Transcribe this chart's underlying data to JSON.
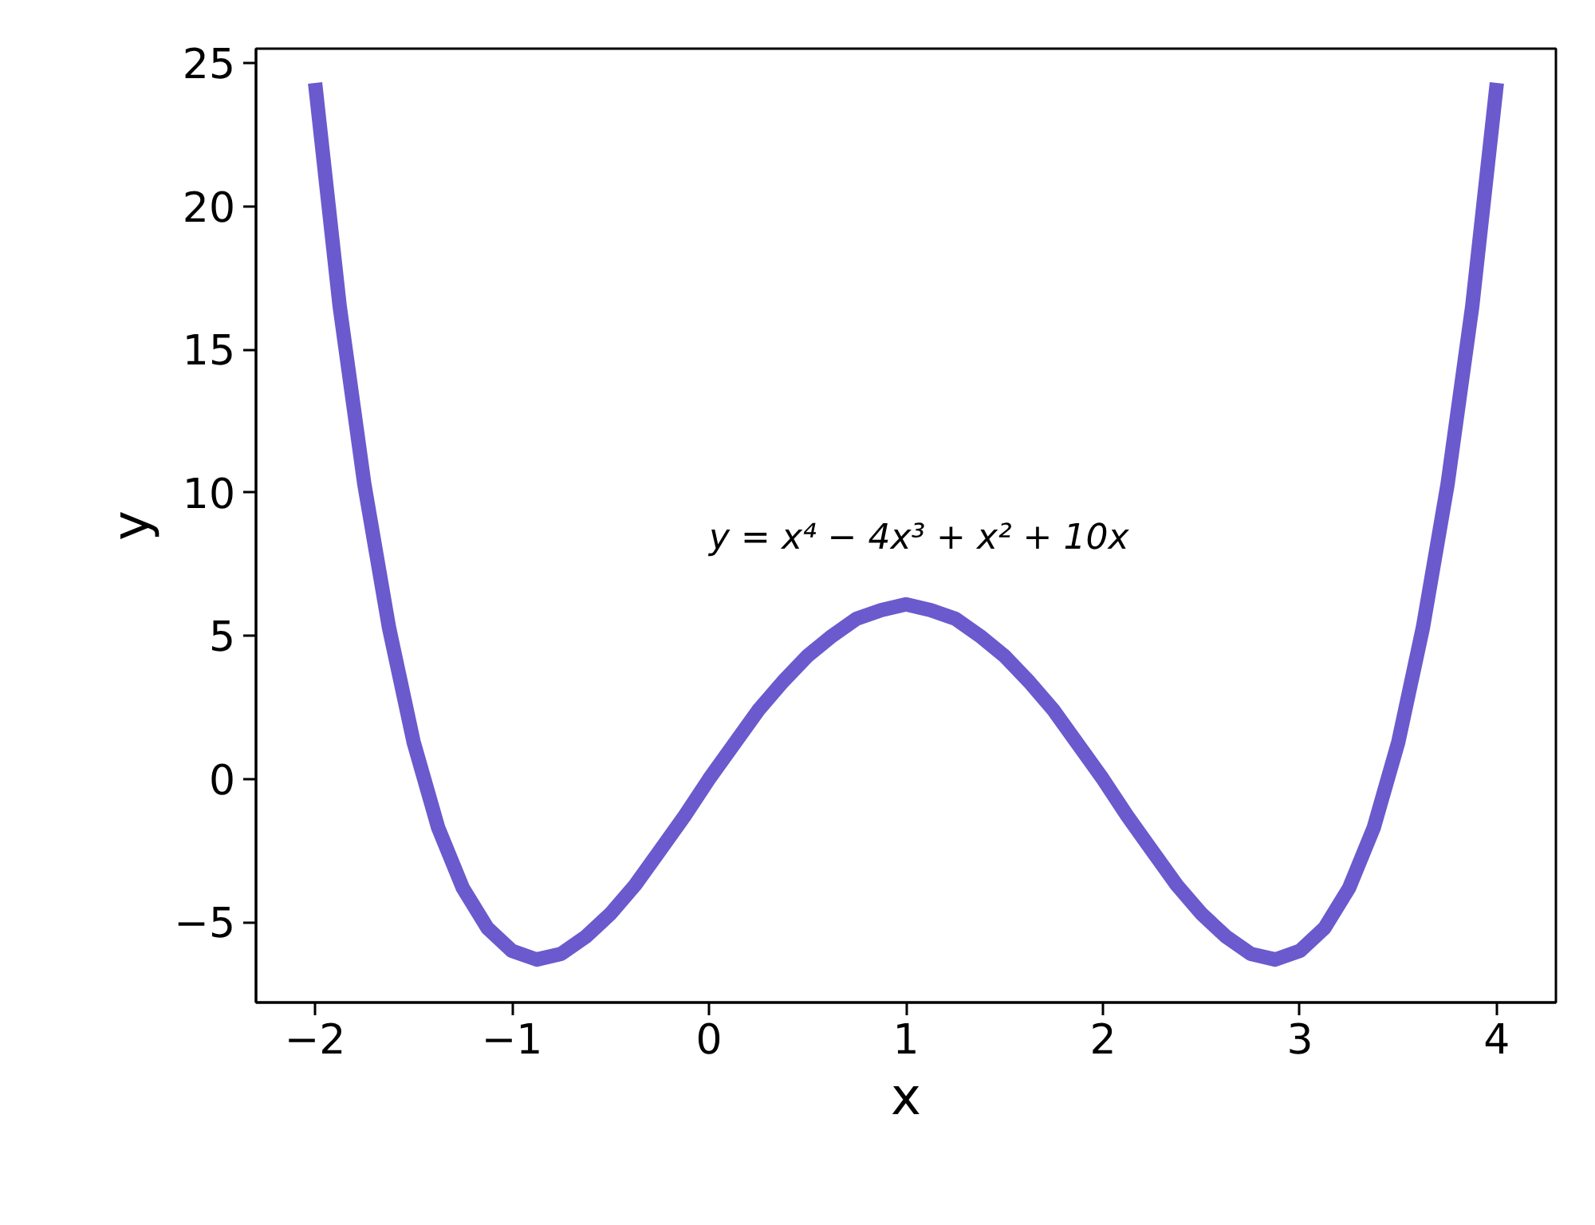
{
  "chart_data": {
    "type": "line",
    "xlabel": "x",
    "ylabel": "y",
    "annotations": [
      "y = x⁴ − 4x³ + x² + 10x"
    ],
    "x": [
      -2,
      -1.875,
      -1.75,
      -1.625,
      -1.5,
      -1.375,
      -1.25,
      -1.125,
      -1,
      -0.875,
      -0.75,
      -0.625,
      -0.5,
      -0.375,
      -0.25,
      -0.125,
      0,
      0.125,
      0.25,
      0.375,
      0.5,
      0.625,
      0.75,
      0.875,
      1,
      1.125,
      1.25,
      1.375,
      1.5,
      1.625,
      1.75,
      1.875,
      2,
      2.125,
      2.25,
      2.375,
      2.5,
      2.625,
      2.75,
      2.875,
      3,
      3.125,
      3.25,
      3.375,
      3.5,
      3.625,
      3.75,
      3.875,
      4
    ],
    "series": [
      {
        "color": "#6a5acd",
        "values": [
          24.3,
          16.5,
          10.3,
          5.3,
          1.3,
          -1.7,
          -3.8,
          -5.2,
          -6.0,
          -6.3,
          -6.1,
          -5.5,
          -4.7,
          -3.7,
          -2.5,
          -1.3,
          0,
          1.2,
          2.4,
          3.4,
          4.3,
          5.0,
          5.6,
          5.9,
          6.1,
          5.9,
          5.6,
          5.0,
          4.3,
          3.4,
          2.4,
          1.2,
          0,
          -1.3,
          -2.5,
          -3.7,
          -4.7,
          -5.5,
          -6.1,
          -6.3,
          -6.0,
          -5.2,
          -3.8,
          -1.7,
          1.3,
          5.3,
          10.3,
          16.5,
          24.3
        ]
      }
    ],
    "xlim": [
      -2.3,
      4.3
    ],
    "ylim": [
      -7.8,
      25.5
    ],
    "xticks": [
      {
        "value": -2,
        "label": "−2"
      },
      {
        "value": -1,
        "label": "−1"
      },
      0,
      1,
      2,
      3,
      4
    ],
    "yticks": [
      {
        "value": -5,
        "label": "−5"
      },
      0,
      5,
      10,
      15,
      20,
      25
    ],
    "grid": false,
    "marker": "none",
    "line_style": "solid"
  }
}
